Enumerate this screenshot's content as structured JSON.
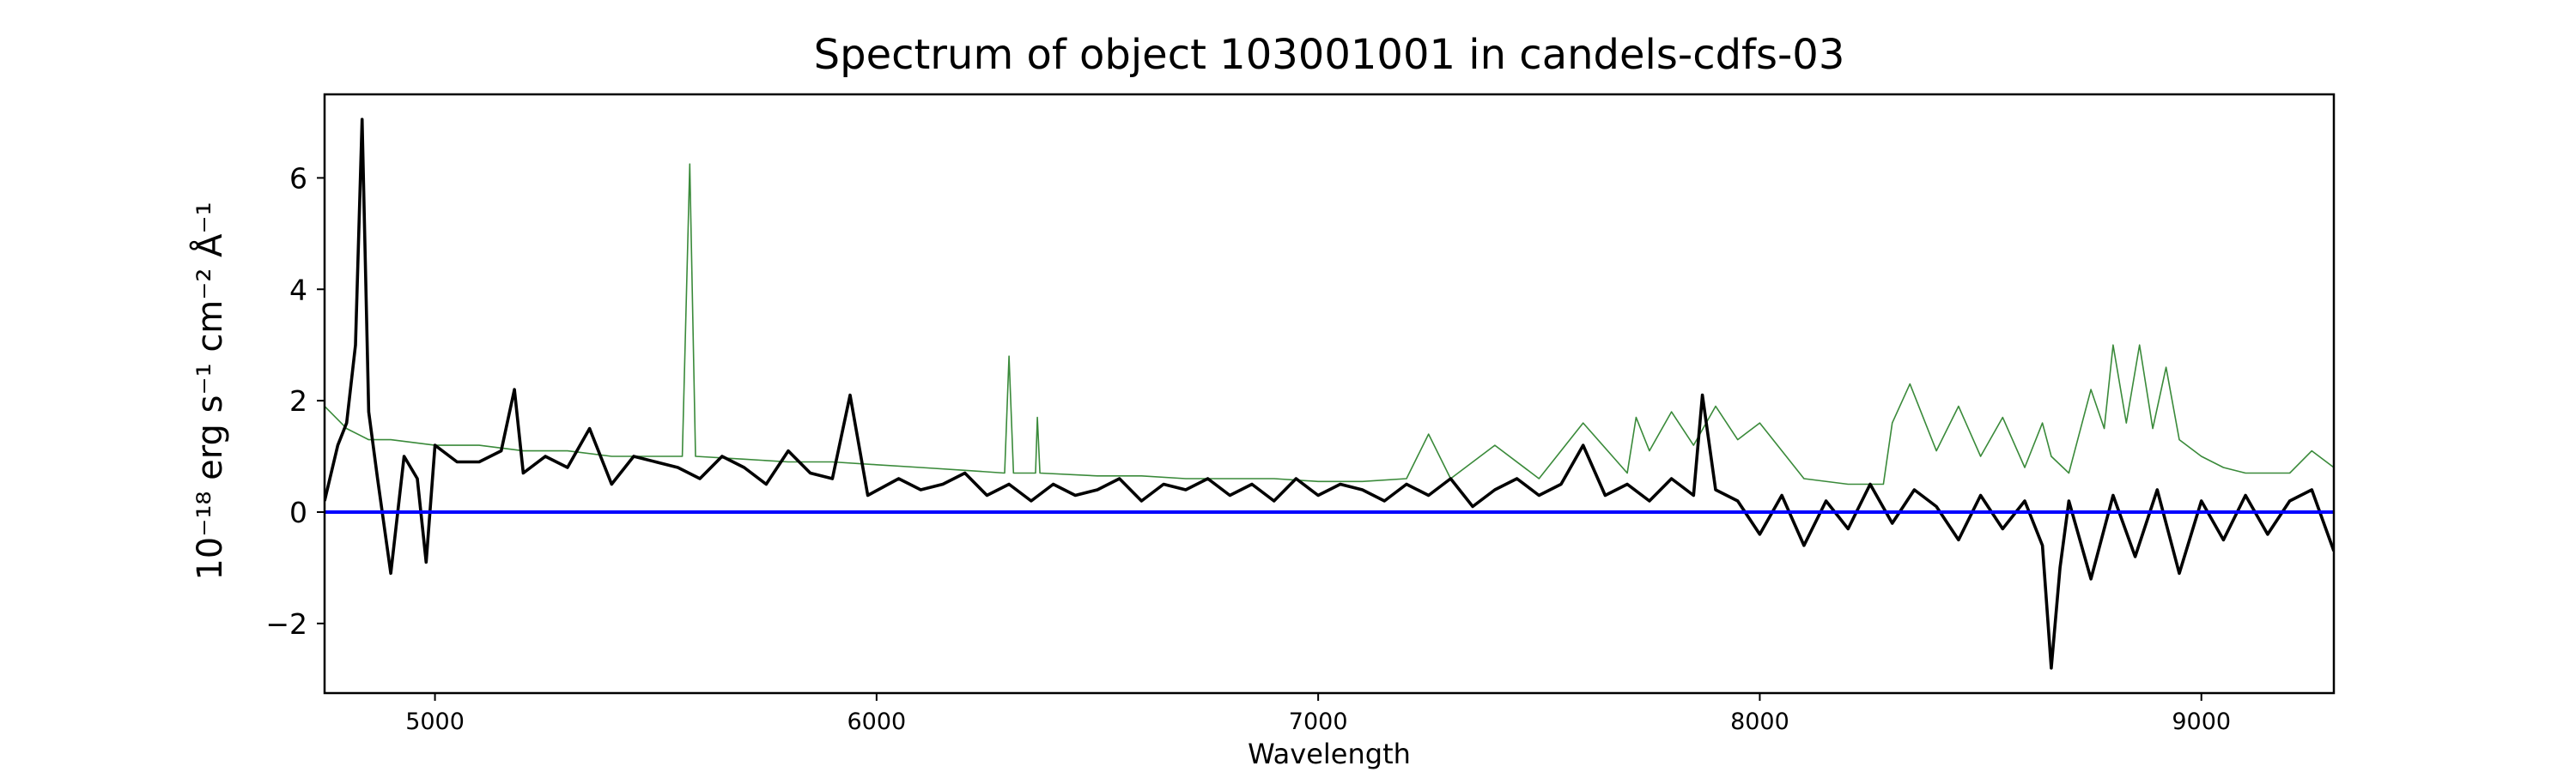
{
  "chart_data": {
    "type": "line",
    "title": "Spectrum of object 103001001 in candels-cdfs-03",
    "xlabel": "Wavelength",
    "ylabel": "10⁻¹⁸ erg s⁻¹ cm⁻² Å⁻¹",
    "xlim": [
      4750,
      9300
    ],
    "ylim": [
      -3.25,
      7.5
    ],
    "xticks": [
      5000,
      6000,
      7000,
      8000,
      9000
    ],
    "yticks": [
      -2,
      0,
      2,
      4,
      6
    ],
    "grid": false,
    "legend": "none",
    "series": [
      {
        "role": "flux",
        "color": "#000000",
        "x": [
          4750,
          4780,
          4800,
          4820,
          4835,
          4850,
          4870,
          4900,
          4930,
          4960,
          4980,
          5000,
          5050,
          5100,
          5150,
          5180,
          5200,
          5250,
          5300,
          5350,
          5400,
          5450,
          5500,
          5550,
          5600,
          5650,
          5700,
          5750,
          5800,
          5850,
          5900,
          5940,
          5980,
          6050,
          6100,
          6150,
          6200,
          6250,
          6300,
          6350,
          6400,
          6450,
          6500,
          6550,
          6600,
          6650,
          6700,
          6750,
          6800,
          6850,
          6900,
          6950,
          7000,
          7050,
          7100,
          7150,
          7200,
          7250,
          7300,
          7350,
          7400,
          7450,
          7500,
          7550,
          7600,
          7650,
          7700,
          7750,
          7800,
          7850,
          7870,
          7900,
          7950,
          8000,
          8050,
          8100,
          8150,
          8200,
          8250,
          8300,
          8350,
          8400,
          8450,
          8500,
          8550,
          8600,
          8640,
          8660,
          8680,
          8700,
          8750,
          8800,
          8850,
          8900,
          8950,
          9000,
          9050,
          9100,
          9150,
          9200,
          9250,
          9300
        ],
        "y": [
          0.2,
          1.2,
          1.6,
          3.0,
          7.05,
          1.8,
          0.6,
          -1.1,
          1.0,
          0.6,
          -0.9,
          1.2,
          0.9,
          0.9,
          1.1,
          2.2,
          0.7,
          1.0,
          0.8,
          1.5,
          0.5,
          1.0,
          0.9,
          0.8,
          0.6,
          1.0,
          0.8,
          0.5,
          1.1,
          0.7,
          0.6,
          2.1,
          0.3,
          0.6,
          0.4,
          0.5,
          0.7,
          0.3,
          0.5,
          0.2,
          0.5,
          0.3,
          0.4,
          0.6,
          0.2,
          0.5,
          0.4,
          0.6,
          0.3,
          0.5,
          0.2,
          0.6,
          0.3,
          0.5,
          0.4,
          0.2,
          0.5,
          0.3,
          0.6,
          0.1,
          0.4,
          0.6,
          0.3,
          0.5,
          1.2,
          0.3,
          0.5,
          0.2,
          0.6,
          0.3,
          2.1,
          0.4,
          0.2,
          -0.4,
          0.3,
          -0.6,
          0.2,
          -0.3,
          0.5,
          -0.2,
          0.4,
          0.1,
          -0.5,
          0.3,
          -0.3,
          0.2,
          -0.6,
          -2.8,
          -1.0,
          0.2,
          -1.2,
          0.3,
          -0.8,
          0.4,
          -1.1,
          0.2,
          -0.5,
          0.3,
          -0.4,
          0.2,
          0.4,
          -0.7
        ]
      },
      {
        "role": "model",
        "color": "#3a8a3a",
        "x": [
          4750,
          4800,
          4850,
          4900,
          5000,
          5100,
          5200,
          5300,
          5400,
          5500,
          5560,
          5577,
          5590,
          5700,
          5800,
          5900,
          6000,
          6100,
          6200,
          6290,
          6300,
          6310,
          6360,
          6364,
          6370,
          6500,
          6600,
          6700,
          6800,
          6900,
          7000,
          7100,
          7200,
          7250,
          7300,
          7400,
          7500,
          7600,
          7700,
          7720,
          7750,
          7800,
          7850,
          7900,
          7950,
          8000,
          8100,
          8200,
          8280,
          8300,
          8340,
          8400,
          8450,
          8500,
          8550,
          8600,
          8640,
          8660,
          8700,
          8750,
          8780,
          8800,
          8830,
          8860,
          8890,
          8920,
          8950,
          9000,
          9050,
          9100,
          9150,
          9200,
          9250,
          9300
        ],
        "y": [
          1.9,
          1.5,
          1.3,
          1.3,
          1.2,
          1.2,
          1.1,
          1.1,
          1.0,
          1.0,
          1.0,
          6.25,
          1.0,
          0.95,
          0.9,
          0.9,
          0.85,
          0.8,
          0.75,
          0.7,
          2.8,
          0.7,
          0.7,
          1.7,
          0.7,
          0.65,
          0.65,
          0.6,
          0.6,
          0.6,
          0.55,
          0.55,
          0.6,
          1.4,
          0.6,
          1.2,
          0.6,
          1.6,
          0.7,
          1.7,
          1.1,
          1.8,
          1.2,
          1.9,
          1.3,
          1.6,
          0.6,
          0.5,
          0.5,
          1.6,
          2.3,
          1.1,
          1.9,
          1.0,
          1.7,
          0.8,
          1.6,
          1.0,
          0.7,
          2.2,
          1.5,
          3.0,
          1.6,
          3.0,
          1.5,
          2.6,
          1.3,
          1.0,
          0.8,
          0.7,
          0.7,
          0.7,
          1.1,
          0.8
        ]
      },
      {
        "role": "zero-line",
        "color": "#0000ff",
        "x": [
          4750,
          9300
        ],
        "y": [
          0,
          0
        ]
      }
    ]
  }
}
